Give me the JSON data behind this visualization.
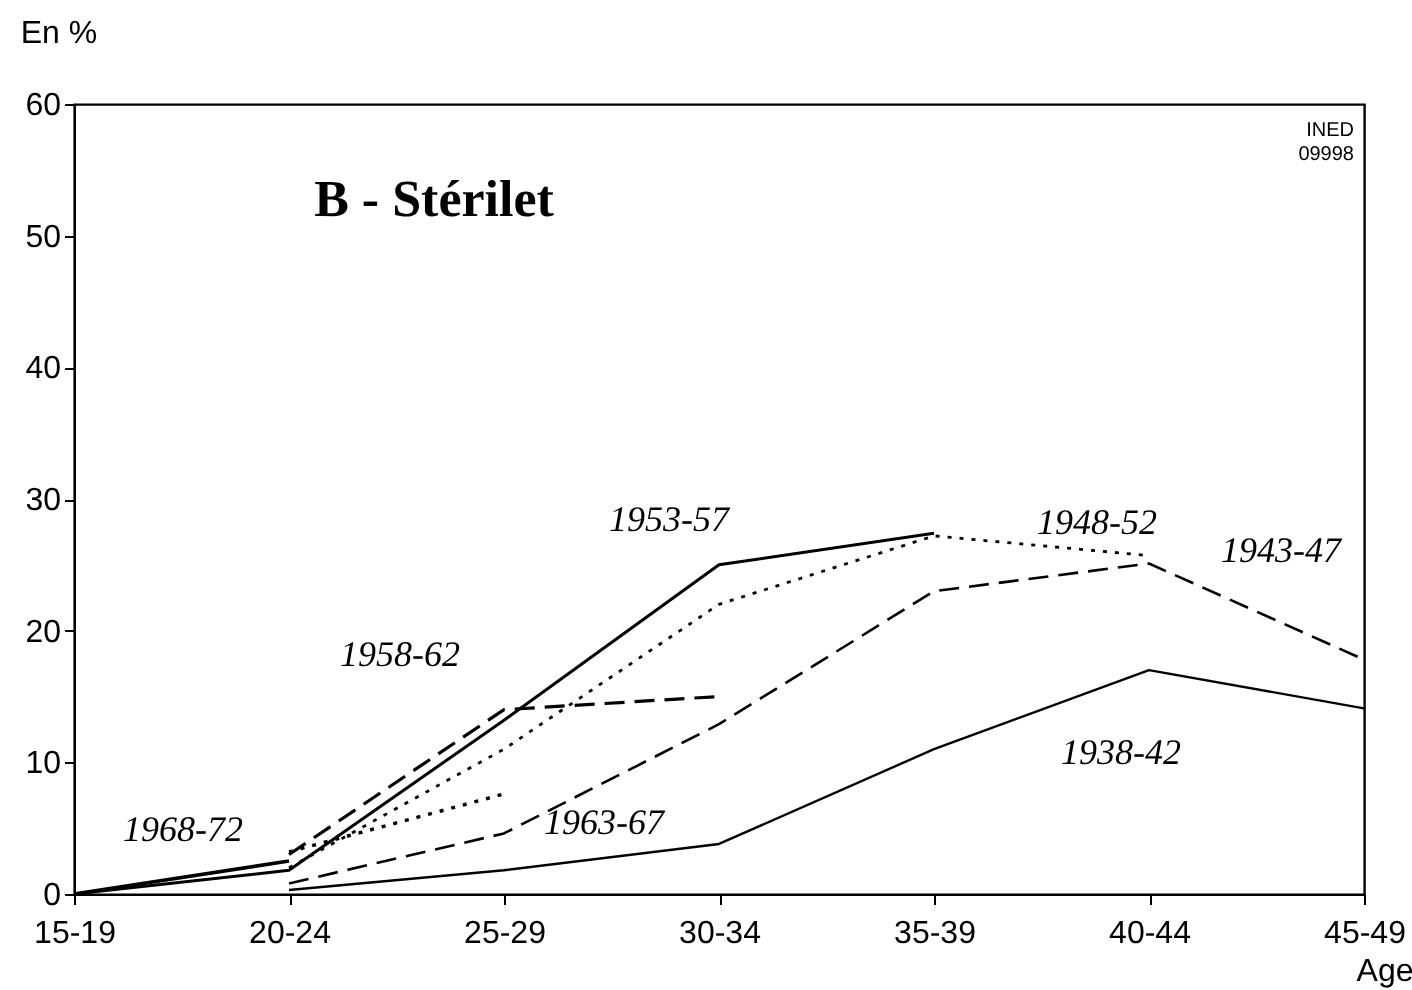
{
  "chart_data": {
    "type": "line",
    "title": "B - Stérilet",
    "xlabel": "Age",
    "ylabel": "En %",
    "categories": [
      "15-19",
      "20-24",
      "25-29",
      "30-34",
      "35-39",
      "40-44",
      "45-49"
    ],
    "ylim": [
      0,
      60
    ],
    "yticks": [
      0,
      10,
      20,
      30,
      40,
      50,
      60
    ],
    "grid": false,
    "legend": false,
    "series": [
      {
        "name": "1938-42",
        "color": "#000000",
        "line_style": "solid",
        "values": [
          null,
          0.3,
          1.8,
          3.8,
          11,
          17,
          14.1
        ]
      },
      {
        "name": "1943-47",
        "color": "#000000",
        "line_style": "dashed",
        "values": [
          null,
          0.8,
          4.6,
          12.9,
          23,
          25.1,
          17.8
        ]
      },
      {
        "name": "1948-52",
        "color": "#000000",
        "line_style": "dotted",
        "values": [
          null,
          2,
          11,
          22,
          27.2,
          25.7,
          null
        ]
      },
      {
        "name": "1953-57",
        "color": "#000000",
        "line_style": "solid",
        "values": [
          0,
          1.8,
          13.2,
          25,
          27.4,
          null,
          null
        ]
      },
      {
        "name": "1958-62",
        "color": "#000000",
        "line_style": "dashed",
        "values": [
          null,
          3,
          14,
          15,
          null,
          null,
          null
        ]
      },
      {
        "name": "1963-67",
        "color": "#000000",
        "line_style": "dotted",
        "values": [
          null,
          3.2,
          7.6,
          null,
          null,
          null,
          null
        ]
      },
      {
        "name": "1968-72",
        "color": "#000000",
        "line_style": "solid",
        "values": [
          0,
          2.5,
          null,
          null,
          null,
          null,
          null
        ]
      }
    ],
    "annotations": [
      "INED 09998"
    ]
  }
}
